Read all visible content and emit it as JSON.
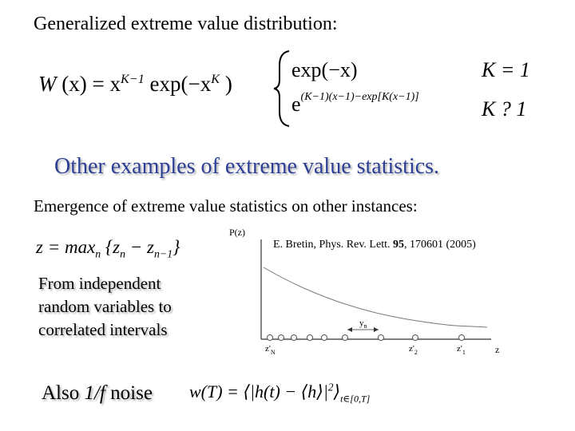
{
  "header": {
    "title": "Generalized extreme value distribution:"
  },
  "formula1": {
    "parts": [
      "W",
      " (x) = x",
      "K−1",
      " exp(−x",
      "K",
      " )"
    ]
  },
  "cases": [
    {
      "expr": [
        "exp(−x)"
      ],
      "condition": "K = 1"
    },
    {
      "expr": [
        "e",
        "(K−1)(x−1)−exp[K(x−1)]"
      ],
      "condition": "K ? 1"
    }
  ],
  "heading": "Other examples of extreme value statistics.",
  "subheading": "Emergence of extreme value statistics on other instances:",
  "formula2": {
    "parts": [
      "z = max",
      "n",
      " {z",
      "n",
      " − z",
      "n−1",
      "}"
    ]
  },
  "reference": {
    "parts": [
      "E. Bretin, Phys. Rev. Lett. ",
      "95",
      ", 170601 (2005)"
    ]
  },
  "left_text": {
    "lines": [
      "From independent",
      "random variables to",
      "correlated intervals"
    ]
  },
  "noise": {
    "parts": [
      "Also ",
      "1/f",
      " noise"
    ]
  },
  "formula3": {
    "parts": [
      "w(T) = ⟨|h(t) − ⟨h⟩|",
      "2",
      "⟩",
      "t∈[0,T]"
    ]
  },
  "figure": {
    "y_label": "P(z)",
    "gap_label": [
      "y",
      "n"
    ],
    "x_labels": [
      [
        "z'",
        "N"
      ],
      [
        "z'",
        "2"
      ],
      [
        "z'",
        "1"
      ]
    ],
    "x_axis_label": "z"
  }
}
